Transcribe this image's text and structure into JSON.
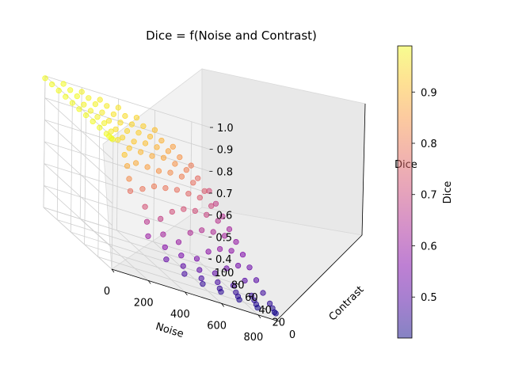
{
  "chart_data": {
    "type": "scatter",
    "title": "Dice = f(Noise and Contrast)",
    "xlabel": "Noise",
    "ylabel": "Contrast",
    "zlabel": "Dice",
    "colorbar_label": "Dice",
    "colormap": "plasma",
    "point_alpha": 0.55,
    "grid": true,
    "xlim": [
      0,
      900
    ],
    "ylim": [
      0,
      100
    ],
    "zlim": [
      0.4,
      1.0
    ],
    "x_ticks": [
      "0",
      "200",
      "400",
      "600",
      "800"
    ],
    "y_ticks": [
      "0",
      "20",
      "40",
      "60",
      "80",
      "100"
    ],
    "z_ticks": [
      "0.4",
      "0.5",
      "0.6",
      "0.7",
      "0.8",
      "0.9",
      "1.0"
    ],
    "colorbar_range": [
      0.42,
      0.99
    ],
    "colorbar_ticks": [
      "0.5",
      "0.6",
      "0.7",
      "0.8",
      "0.9"
    ],
    "noise_levels": [
      0,
      100,
      200,
      300,
      400,
      500,
      600,
      700,
      800,
      900
    ],
    "contrast_levels": [
      1,
      3,
      6,
      10,
      20,
      30,
      40,
      50,
      60,
      70,
      80,
      90,
      100
    ],
    "dice_grid": [
      [
        0.99,
        0.99,
        0.99,
        0.99,
        0.99,
        0.99,
        0.99,
        0.99,
        0.99,
        0.99,
        0.99,
        0.99,
        0.99
      ],
      [
        0.78,
        0.83,
        0.88,
        0.92,
        0.96,
        0.97,
        0.98,
        0.98,
        0.98,
        0.98,
        0.99,
        0.99,
        0.99
      ],
      [
        0.6,
        0.66,
        0.72,
        0.79,
        0.88,
        0.92,
        0.94,
        0.95,
        0.96,
        0.97,
        0.98,
        0.98,
        0.98
      ],
      [
        0.52,
        0.57,
        0.62,
        0.68,
        0.8,
        0.86,
        0.9,
        0.92,
        0.94,
        0.95,
        0.96,
        0.97,
        0.97
      ],
      [
        0.48,
        0.51,
        0.55,
        0.6,
        0.71,
        0.79,
        0.84,
        0.88,
        0.91,
        0.93,
        0.94,
        0.95,
        0.96
      ],
      [
        0.46,
        0.48,
        0.51,
        0.55,
        0.64,
        0.72,
        0.78,
        0.83,
        0.87,
        0.89,
        0.91,
        0.93,
        0.94
      ],
      [
        0.45,
        0.46,
        0.48,
        0.51,
        0.58,
        0.65,
        0.71,
        0.76,
        0.81,
        0.84,
        0.87,
        0.89,
        0.91
      ],
      [
        0.44,
        0.45,
        0.46,
        0.48,
        0.53,
        0.59,
        0.64,
        0.69,
        0.74,
        0.78,
        0.81,
        0.84,
        0.86
      ],
      [
        0.43,
        0.44,
        0.45,
        0.46,
        0.5,
        0.54,
        0.58,
        0.62,
        0.66,
        0.7,
        0.74,
        0.77,
        0.8
      ],
      [
        0.43,
        0.43,
        0.44,
        0.45,
        0.47,
        0.5,
        0.53,
        0.56,
        0.59,
        0.62,
        0.65,
        0.68,
        0.71
      ]
    ]
  }
}
